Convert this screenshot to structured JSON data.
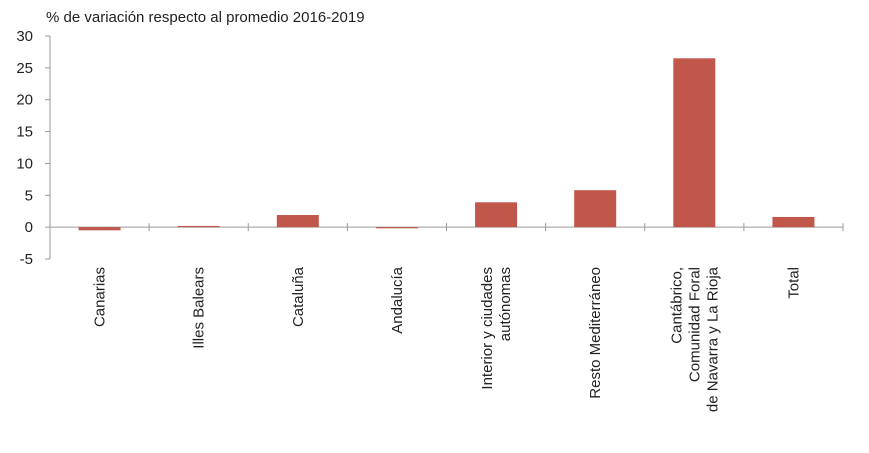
{
  "chart_data": {
    "type": "bar",
    "subtitle": "% de variación respecto al promedio 2016-2019",
    "categories": [
      [
        "Canarias"
      ],
      [
        "Illes Balears"
      ],
      [
        "Cataluña"
      ],
      [
        "Andalucía"
      ],
      [
        "Interior y ciudades",
        "autónomas"
      ],
      [
        "Resto Mediterráneo"
      ],
      [
        "Cantábrico,",
        "Comunidad Foral",
        "de Navarra y La Rioja"
      ],
      [
        "Total"
      ]
    ],
    "values": [
      -0.5,
      0.0,
      1.9,
      -0.1,
      3.9,
      5.8,
      26.5,
      1.6
    ],
    "ylim": [
      -5,
      30
    ],
    "yticks": [
      -5,
      0,
      5,
      10,
      15,
      20,
      25,
      30
    ],
    "grid": false,
    "legend": "none",
    "colors": {
      "bar": "#c0574a",
      "axis": "#9a9a9a",
      "text": "#222222"
    }
  }
}
